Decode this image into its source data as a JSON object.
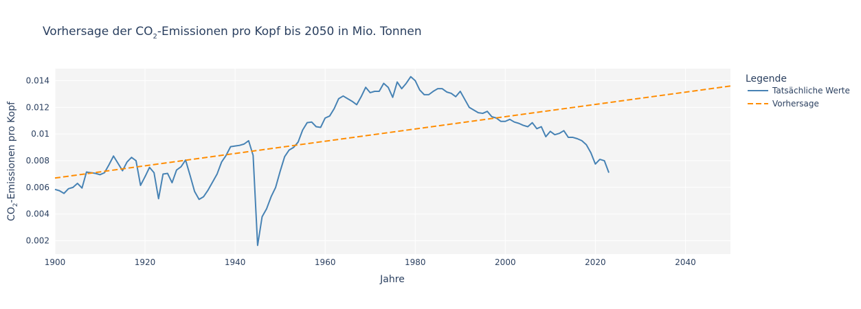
{
  "chart_data": {
    "type": "line",
    "title": {
      "pre": "Vorhersage der CO",
      "sub": "2",
      "post": "-Emissionen pro Kopf bis 2050 in Mio. Tonnen"
    },
    "xlabel": "Jahre",
    "ylabel": {
      "pre": "CO",
      "sub": "2",
      "post": "-Emissionen pro Kopf"
    },
    "xlim": [
      1900,
      2050
    ],
    "ylim": [
      0.001,
      0.0149
    ],
    "x_ticks": [
      {
        "value": 1900,
        "label": "1900"
      },
      {
        "value": 1920,
        "label": "1920"
      },
      {
        "value": 1940,
        "label": "1940"
      },
      {
        "value": 1960,
        "label": "1960"
      },
      {
        "value": 1980,
        "label": "1980"
      },
      {
        "value": 2000,
        "label": "2000"
      },
      {
        "value": 2020,
        "label": "2020"
      },
      {
        "value": 2040,
        "label": "2040"
      }
    ],
    "y_ticks": [
      {
        "value": 0.002,
        "label": "0.002"
      },
      {
        "value": 0.004,
        "label": "0.004"
      },
      {
        "value": 0.006,
        "label": "0.006"
      },
      {
        "value": 0.008,
        "label": "0.008"
      },
      {
        "value": 0.01,
        "label": "0.01"
      },
      {
        "value": 0.012,
        "label": "0.012"
      },
      {
        "value": 0.014,
        "label": "0.014"
      }
    ],
    "grid": true,
    "legend": {
      "title": "Legende",
      "placement": "right"
    },
    "series": [
      {
        "name": "Tatsächliche Werte",
        "color": "#4682b4",
        "dash": "solid",
        "points": [
          [
            1900,
            0.00585
          ],
          [
            1901,
            0.00575
          ],
          [
            1902,
            0.00555
          ],
          [
            1903,
            0.0059
          ],
          [
            1904,
            0.006
          ],
          [
            1905,
            0.0063
          ],
          [
            1906,
            0.00595
          ],
          [
            1907,
            0.00715
          ],
          [
            1908,
            0.0071
          ],
          [
            1909,
            0.00705
          ],
          [
            1910,
            0.00695
          ],
          [
            1911,
            0.0071
          ],
          [
            1912,
            0.0077
          ],
          [
            1913,
            0.00835
          ],
          [
            1914,
            0.0078
          ],
          [
            1915,
            0.00725
          ],
          [
            1916,
            0.0079
          ],
          [
            1917,
            0.00825
          ],
          [
            1918,
            0.008
          ],
          [
            1919,
            0.00615
          ],
          [
            1920,
            0.0068
          ],
          [
            1921,
            0.0075
          ],
          [
            1922,
            0.0071
          ],
          [
            1923,
            0.00515
          ],
          [
            1924,
            0.007
          ],
          [
            1925,
            0.00705
          ],
          [
            1926,
            0.00635
          ],
          [
            1927,
            0.0073
          ],
          [
            1928,
            0.00755
          ],
          [
            1929,
            0.00805
          ],
          [
            1930,
            0.0069
          ],
          [
            1931,
            0.0057
          ],
          [
            1932,
            0.0051
          ],
          [
            1933,
            0.0053
          ],
          [
            1934,
            0.0058
          ],
          [
            1935,
            0.0064
          ],
          [
            1936,
            0.007
          ],
          [
            1937,
            0.0079
          ],
          [
            1938,
            0.0084
          ],
          [
            1939,
            0.00905
          ],
          [
            1940,
            0.0091
          ],
          [
            1941,
            0.00915
          ],
          [
            1942,
            0.00925
          ],
          [
            1943,
            0.0095
          ],
          [
            1944,
            0.0084
          ],
          [
            1945,
            0.00165
          ],
          [
            1946,
            0.0038
          ],
          [
            1947,
            0.0044
          ],
          [
            1948,
            0.0053
          ],
          [
            1949,
            0.006
          ],
          [
            1950,
            0.0072
          ],
          [
            1951,
            0.0083
          ],
          [
            1952,
            0.0088
          ],
          [
            1953,
            0.009
          ],
          [
            1954,
            0.0094
          ],
          [
            1955,
            0.0103
          ],
          [
            1956,
            0.01085
          ],
          [
            1957,
            0.0109
          ],
          [
            1958,
            0.01055
          ],
          [
            1959,
            0.0105
          ],
          [
            1960,
            0.0112
          ],
          [
            1961,
            0.01135
          ],
          [
            1962,
            0.0119
          ],
          [
            1963,
            0.01265
          ],
          [
            1964,
            0.01285
          ],
          [
            1965,
            0.01265
          ],
          [
            1966,
            0.01245
          ],
          [
            1967,
            0.0122
          ],
          [
            1968,
            0.0128
          ],
          [
            1969,
            0.0135
          ],
          [
            1970,
            0.0131
          ],
          [
            1971,
            0.0132
          ],
          [
            1972,
            0.0132
          ],
          [
            1973,
            0.0138
          ],
          [
            1974,
            0.0135
          ],
          [
            1975,
            0.01275
          ],
          [
            1976,
            0.0139
          ],
          [
            1977,
            0.0134
          ],
          [
            1978,
            0.0138
          ],
          [
            1979,
            0.0143
          ],
          [
            1980,
            0.014
          ],
          [
            1981,
            0.0133
          ],
          [
            1982,
            0.01295
          ],
          [
            1983,
            0.01295
          ],
          [
            1984,
            0.0132
          ],
          [
            1985,
            0.0134
          ],
          [
            1986,
            0.0134
          ],
          [
            1987,
            0.01315
          ],
          [
            1988,
            0.01305
          ],
          [
            1989,
            0.0128
          ],
          [
            1990,
            0.0132
          ],
          [
            1991,
            0.0126
          ],
          [
            1992,
            0.012
          ],
          [
            1993,
            0.0118
          ],
          [
            1994,
            0.0116
          ],
          [
            1995,
            0.01155
          ],
          [
            1996,
            0.0117
          ],
          [
            1997,
            0.0113
          ],
          [
            1998,
            0.0112
          ],
          [
            1999,
            0.01095
          ],
          [
            2000,
            0.01095
          ],
          [
            2001,
            0.0111
          ],
          [
            2002,
            0.0109
          ],
          [
            2003,
            0.0108
          ],
          [
            2004,
            0.01065
          ],
          [
            2005,
            0.01055
          ],
          [
            2006,
            0.01085
          ],
          [
            2007,
            0.0104
          ],
          [
            2008,
            0.01055
          ],
          [
            2009,
            0.0098
          ],
          [
            2010,
            0.0102
          ],
          [
            2011,
            0.00995
          ],
          [
            2012,
            0.01005
          ],
          [
            2013,
            0.01025
          ],
          [
            2014,
            0.00975
          ],
          [
            2015,
            0.00975
          ],
          [
            2016,
            0.00965
          ],
          [
            2017,
            0.0095
          ],
          [
            2018,
            0.0092
          ],
          [
            2019,
            0.0086
          ],
          [
            2020,
            0.00775
          ],
          [
            2021,
            0.0081
          ],
          [
            2022,
            0.008
          ],
          [
            2023,
            0.0071
          ]
        ]
      },
      {
        "name": "Vorhersage",
        "color": "#ff8c00",
        "dash": "dashed",
        "points": [
          [
            1900,
            0.0067
          ],
          [
            2050,
            0.0136
          ]
        ]
      }
    ]
  }
}
